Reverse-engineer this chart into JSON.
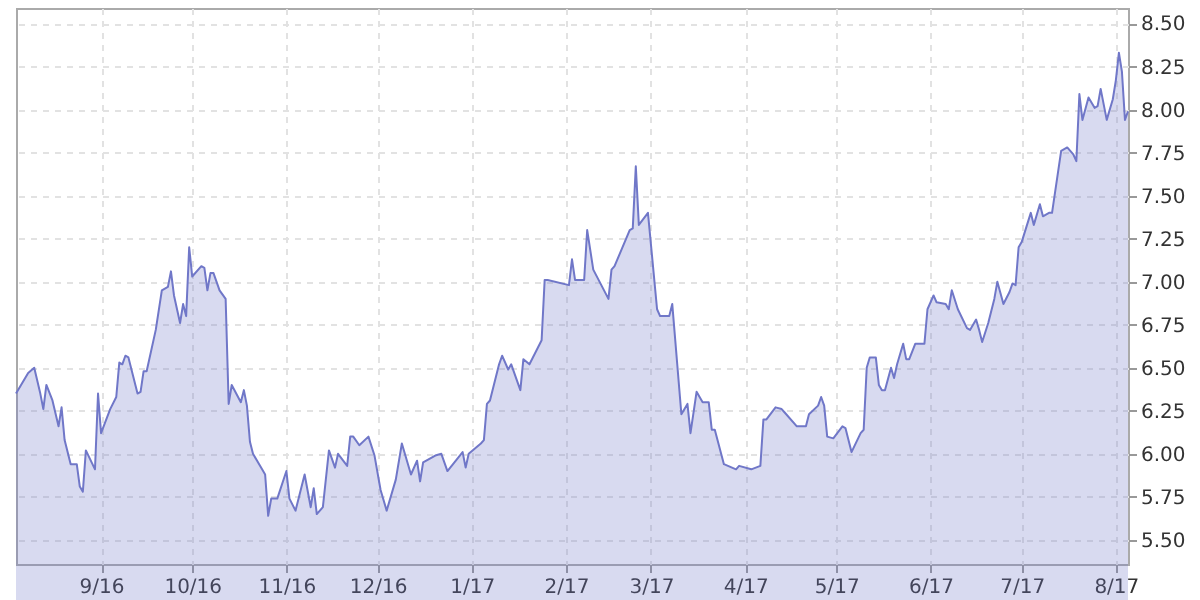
{
  "chart_data": {
    "type": "area",
    "grid": true,
    "line_style": "solid",
    "x": [
      "2016-08-04",
      "2016-08-08",
      "2016-08-10",
      "2016-08-12",
      "2016-08-13",
      "2016-08-14",
      "2016-08-16",
      "2016-08-18",
      "2016-08-19",
      "2016-08-20",
      "2016-08-22",
      "2016-08-24",
      "2016-08-25",
      "2016-08-26",
      "2016-08-27",
      "2016-08-30",
      "2016-08-31",
      "2016-09-01",
      "2016-09-04",
      "2016-09-06",
      "2016-09-07",
      "2016-09-08",
      "2016-09-09",
      "2016-09-10",
      "2016-09-13",
      "2016-09-14",
      "2016-09-15",
      "2016-09-16",
      "2016-09-19",
      "2016-09-21",
      "2016-09-23",
      "2016-09-24",
      "2016-09-25",
      "2016-09-27",
      "2016-09-28",
      "2016-09-29",
      "2016-09-30",
      "2016-10-01",
      "2016-10-04",
      "2016-10-05",
      "2016-10-06",
      "2016-10-07",
      "2016-10-08",
      "2016-10-10",
      "2016-10-12",
      "2016-10-13",
      "2016-10-14",
      "2016-10-17",
      "2016-10-18",
      "2016-10-19",
      "2016-10-20",
      "2016-10-21",
      "2016-10-24",
      "2016-10-25",
      "2016-10-26",
      "2016-10-27",
      "2016-10-29",
      "2016-11-01",
      "2016-11-02",
      "2016-11-04",
      "2016-11-07",
      "2016-11-09",
      "2016-11-10",
      "2016-11-11",
      "2016-11-13",
      "2016-11-15",
      "2016-11-17",
      "2016-11-18",
      "2016-11-21",
      "2016-11-22",
      "2016-11-23",
      "2016-11-25",
      "2016-11-28",
      "2016-11-30",
      "2016-12-02",
      "2016-12-04",
      "2016-12-07",
      "2016-12-09",
      "2016-12-12",
      "2016-12-14",
      "2016-12-15",
      "2016-12-16",
      "2016-12-20",
      "2016-12-22",
      "2016-12-24",
      "2016-12-29",
      "2016-12-30",
      "2016-12-31",
      "2017-01-04",
      "2017-01-05",
      "2017-01-06",
      "2017-01-07",
      "2017-01-10",
      "2017-01-11",
      "2017-01-13",
      "2017-01-14",
      "2017-01-17",
      "2017-01-18",
      "2017-01-20",
      "2017-01-24",
      "2017-01-25",
      "2017-01-26",
      "2017-02-02",
      "2017-02-03",
      "2017-02-04",
      "2017-02-07",
      "2017-02-08",
      "2017-02-10",
      "2017-02-15",
      "2017-02-16",
      "2017-02-17",
      "2017-02-22",
      "2017-02-23",
      "2017-02-24",
      "2017-02-25",
      "2017-02-28",
      "2017-03-03",
      "2017-03-04",
      "2017-03-07",
      "2017-03-08",
      "2017-03-11",
      "2017-03-13",
      "2017-03-14",
      "2017-03-16",
      "2017-03-18",
      "2017-03-20",
      "2017-03-21",
      "2017-03-22",
      "2017-03-25",
      "2017-03-29",
      "2017-03-30",
      "2017-04-03",
      "2017-04-06",
      "2017-04-07",
      "2017-04-08",
      "2017-04-11",
      "2017-04-13",
      "2017-04-14",
      "2017-04-18",
      "2017-04-21",
      "2017-04-22",
      "2017-04-25",
      "2017-04-26",
      "2017-04-27",
      "2017-04-28",
      "2017-04-30",
      "2017-05-03",
      "2017-05-04",
      "2017-05-05",
      "2017-05-06",
      "2017-05-09",
      "2017-05-10",
      "2017-05-11",
      "2017-05-12",
      "2017-05-14",
      "2017-05-15",
      "2017-05-16",
      "2017-05-17",
      "2017-05-19",
      "2017-05-20",
      "2017-05-21",
      "2017-05-23",
      "2017-05-24",
      "2017-05-25",
      "2017-05-27",
      "2017-05-30",
      "2017-05-31",
      "2017-06-02",
      "2017-06-03",
      "2017-06-06",
      "2017-06-07",
      "2017-06-08",
      "2017-06-10",
      "2017-06-13",
      "2017-06-14",
      "2017-06-16",
      "2017-06-17",
      "2017-06-18",
      "2017-06-20",
      "2017-06-22",
      "2017-06-23",
      "2017-06-25",
      "2017-06-27",
      "2017-06-28",
      "2017-06-29",
      "2017-06-30",
      "2017-07-01",
      "2017-07-04",
      "2017-07-05",
      "2017-07-07",
      "2017-07-08",
      "2017-07-10",
      "2017-07-11",
      "2017-07-14",
      "2017-07-16",
      "2017-07-18",
      "2017-07-19",
      "2017-07-20",
      "2017-07-21",
      "2017-07-23",
      "2017-07-25",
      "2017-07-26",
      "2017-07-27",
      "2017-07-29",
      "2017-07-31",
      "2017-08-01",
      "2017-08-02",
      "2017-08-03",
      "2017-08-04",
      "2017-08-05"
    ],
    "series": [
      {
        "color": "#7077c8",
        "values": [
          6.35,
          6.47,
          6.5,
          6.35,
          6.26,
          6.4,
          6.31,
          6.16,
          6.27,
          6.08,
          5.94,
          5.94,
          5.81,
          5.78,
          6.02,
          5.91,
          6.35,
          6.12,
          6.26,
          6.33,
          6.53,
          6.52,
          6.57,
          6.56,
          6.35,
          6.36,
          6.48,
          6.48,
          6.72,
          6.95,
          6.97,
          7.06,
          6.92,
          6.76,
          6.87,
          6.8,
          7.2,
          7.03,
          7.09,
          7.08,
          6.95,
          7.05,
          7.05,
          6.95,
          6.9,
          6.29,
          6.4,
          6.3,
          6.37,
          6.28,
          6.07,
          6.0,
          5.91,
          5.88,
          5.64,
          5.74,
          5.74,
          5.9,
          5.74,
          5.67,
          5.88,
          5.69,
          5.8,
          5.65,
          5.69,
          6.02,
          5.92,
          6.0,
          5.93,
          6.1,
          6.1,
          6.05,
          6.1,
          5.99,
          5.79,
          5.67,
          5.85,
          6.06,
          5.88,
          5.96,
          5.84,
          5.95,
          5.99,
          6.0,
          5.9,
          6.01,
          5.92,
          6.0,
          6.06,
          6.08,
          6.29,
          6.31,
          6.52,
          6.57,
          6.49,
          6.52,
          6.37,
          6.55,
          6.52,
          6.66,
          7.01,
          7.01,
          6.98,
          7.13,
          7.01,
          7.01,
          7.3,
          7.07,
          6.9,
          7.07,
          7.09,
          7.3,
          7.31,
          7.67,
          7.33,
          7.4,
          6.84,
          6.8,
          6.8,
          6.87,
          6.23,
          6.29,
          6.12,
          6.36,
          6.3,
          6.3,
          6.14,
          6.14,
          5.94,
          5.91,
          5.93,
          5.91,
          5.93,
          6.2,
          6.2,
          6.27,
          6.26,
          6.24,
          6.16,
          6.16,
          6.23,
          6.28,
          6.33,
          6.28,
          6.1,
          6.09,
          6.16,
          6.15,
          6.08,
          6.01,
          6.12,
          6.14,
          6.5,
          6.56,
          6.56,
          6.4,
          6.37,
          6.37,
          6.5,
          6.44,
          6.52,
          6.64,
          6.55,
          6.55,
          6.64,
          6.64,
          6.84,
          6.92,
          6.88,
          6.87,
          6.84,
          6.95,
          6.84,
          6.73,
          6.72,
          6.78,
          6.72,
          6.65,
          6.76,
          6.9,
          7.0,
          6.87,
          6.94,
          6.99,
          6.98,
          7.2,
          7.23,
          7.4,
          7.33,
          7.45,
          7.38,
          7.4,
          7.4,
          7.76,
          7.78,
          7.74,
          7.7,
          8.09,
          7.94,
          8.07,
          8.01,
          8.02,
          8.12,
          7.94,
          8.06,
          8.17,
          8.33,
          8.22,
          7.94,
          7.99
        ]
      }
    ],
    "xlim": [
      "2016-08-04",
      "2017-08-05"
    ],
    "xticks": [
      {
        "value": "2016-09-01",
        "label": "9/16"
      },
      {
        "value": "2016-10-01",
        "label": "10/16"
      },
      {
        "value": "2016-11-01",
        "label": "11/16"
      },
      {
        "value": "2016-12-01",
        "label": "12/16"
      },
      {
        "value": "2017-01-01",
        "label": "1/17"
      },
      {
        "value": "2017-02-01",
        "label": "2/17"
      },
      {
        "value": "2017-03-01",
        "label": "3/17"
      },
      {
        "value": "2017-04-01",
        "label": "4/17"
      },
      {
        "value": "2017-05-01",
        "label": "5/17"
      },
      {
        "value": "2017-06-01",
        "label": "6/17"
      },
      {
        "value": "2017-07-01",
        "label": "7/17"
      },
      {
        "value": "2017-08-01",
        "label": "8/17"
      }
    ],
    "ylim": [
      5.36,
      8.59
    ],
    "yticks": [
      {
        "value": 5.5,
        "label": "5.50"
      },
      {
        "value": 5.75,
        "label": "5.75"
      },
      {
        "value": 6.0,
        "label": "6.00"
      },
      {
        "value": 6.25,
        "label": "6.25"
      },
      {
        "value": 6.5,
        "label": "6.50"
      },
      {
        "value": 6.75,
        "label": "6.75"
      },
      {
        "value": 7.0,
        "label": "7.00"
      },
      {
        "value": 7.25,
        "label": "7.25"
      },
      {
        "value": 7.5,
        "label": "7.50"
      },
      {
        "value": 7.75,
        "label": "7.75"
      },
      {
        "value": 8.0,
        "label": "8.00"
      },
      {
        "value": 8.25,
        "label": "8.25"
      },
      {
        "value": 8.5,
        "label": "8.50"
      }
    ]
  }
}
